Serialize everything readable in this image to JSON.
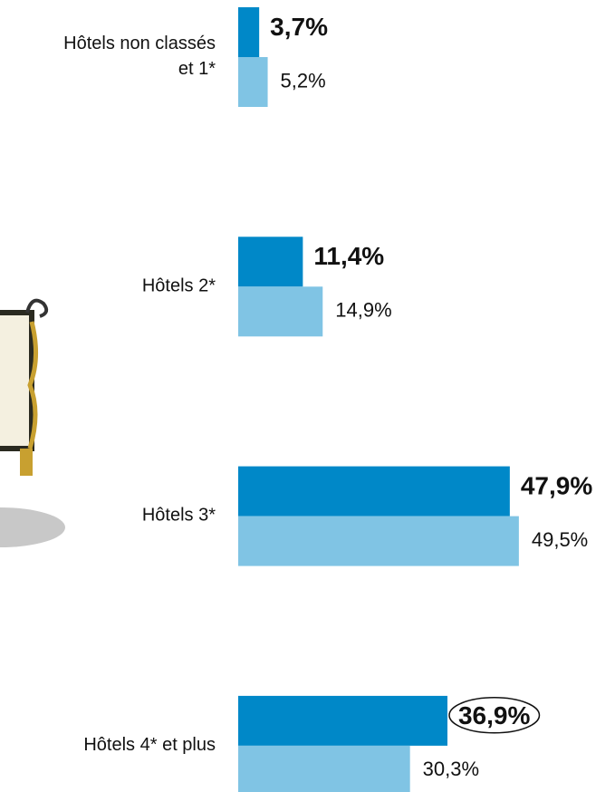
{
  "chart_data": {
    "type": "bar",
    "orientation": "horizontal",
    "categories": [
      "Hôtels non classés\net 1*",
      "Hôtels 2*",
      "Hôtels 3*",
      "Hôtels 4* et plus"
    ],
    "series": [
      {
        "color": "#0088c8",
        "values": [
          3.7,
          11.4,
          47.9,
          36.9
        ],
        "value_labels": [
          "3,7%",
          "11,4%",
          "47,9%",
          "36,9%"
        ]
      },
      {
        "color": "#80c4e4",
        "values": [
          5.2,
          14.9,
          49.5,
          30.3
        ],
        "value_labels": [
          "5,2%",
          "14,9%",
          "49,5%",
          "30,3%"
        ]
      }
    ]
  }
}
